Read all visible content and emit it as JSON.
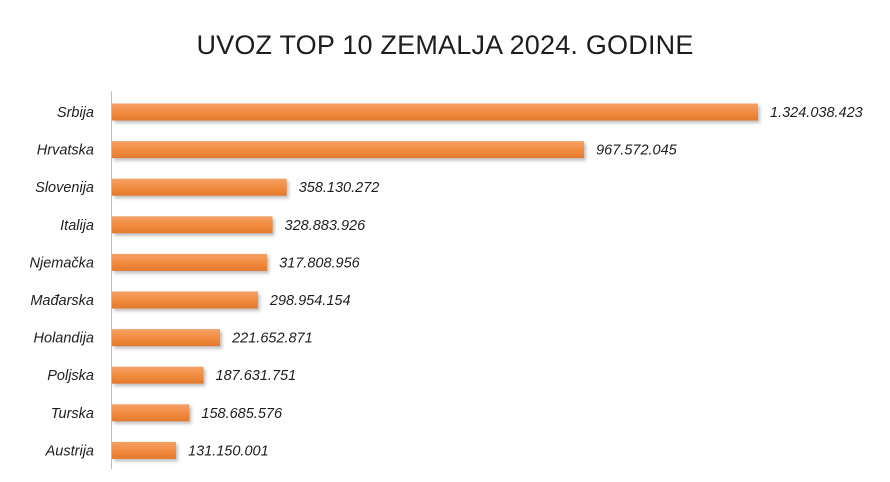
{
  "chart_data": {
    "type": "bar",
    "orientation": "horizontal",
    "title": "UVOZ TOP 10 ZEMALJA 2024. GODINE",
    "categories": [
      "Srbija",
      "Hrvatska",
      "Slovenija",
      "Italija",
      "Njemačka",
      "Mađarska",
      "Holandija",
      "Poljska",
      "Turska",
      "Austrija"
    ],
    "values": [
      1324038423,
      967572045,
      358130272,
      328883926,
      317808956,
      298954154,
      221652871,
      187631751,
      158685576,
      131150001
    ],
    "value_labels": [
      "1.324.038.423",
      "967.572.045",
      "358.130.272",
      "328.883.926",
      "317.808.956",
      "298.954.154",
      "221.652.871",
      "187.631.751",
      "158.685.576",
      "131.150.001"
    ],
    "xlabel": "",
    "ylabel": "",
    "xlim": [
      0,
      1324038423
    ],
    "grid": false,
    "legend": "none",
    "colors": {
      "bar": "#f08a3e",
      "bar_shadow": "#c8c8c8",
      "axis": "#bdbdbd",
      "text": "#1e1e1e"
    }
  }
}
